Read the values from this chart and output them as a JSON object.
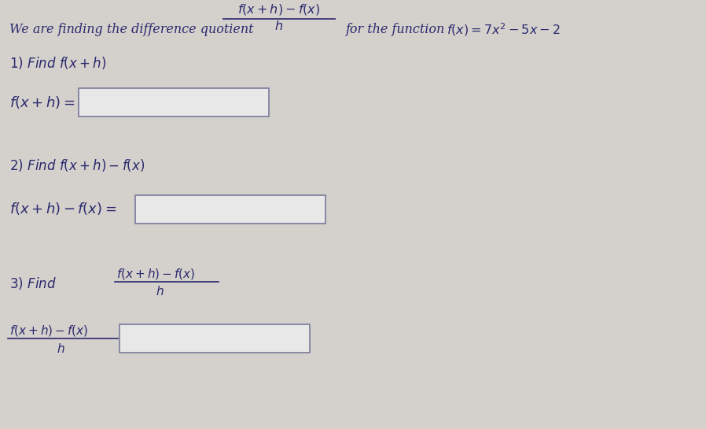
{
  "bg_color": "#d4d0cc",
  "text_color": "#2a2a6e",
  "box_facecolor": "#e8e8e8",
  "box_edgecolor": "#7a7a9a",
  "figsize": [
    8.98,
    5.45
  ],
  "dpi": 100,
  "header_left": "We are finding the difference quotient",
  "header_frac_num": "$f(x+h)-f(x)$",
  "header_frac_den": "$h$",
  "header_right": "for the function",
  "header_func": "$f(x)=7x^2-5x-2$",
  "s1_label": "1) Find $f(x+h)$",
  "s1_eq": "$f(x+h)=$",
  "s2_label": "2) Find $f(x+h)-f(x)$",
  "s2_eq": "$f(x+h)-f(x)=$",
  "s3_label": "3) Find",
  "s3_frac_num": "$f(x+h)-f(x)$",
  "s3_frac_den": "$h$",
  "s3_eq_num": "$f(x+h)-f(x)$",
  "s3_eq_den": "$h$"
}
